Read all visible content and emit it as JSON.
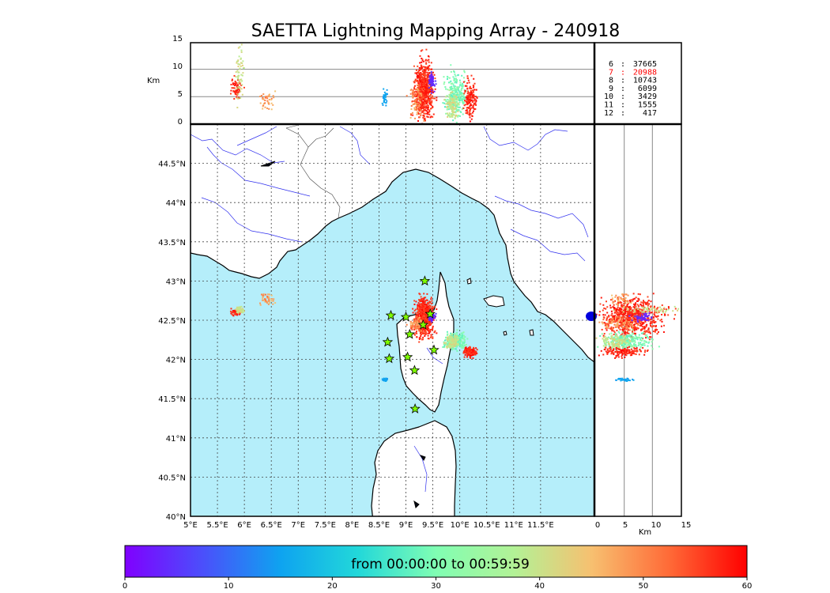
{
  "title": "SAETTA Lightning Mapping Array - 240918",
  "altitude_axis": {
    "label": "Km",
    "ticks": [
      "0",
      "5",
      "10",
      "15"
    ],
    "range_km": [
      0,
      15
    ]
  },
  "map": {
    "lon_range": [
      5.0,
      12.5
    ],
    "lat_range": [
      40.0,
      45.0
    ],
    "lon_ticks": [
      "5°E",
      "5.5°E",
      "6°E",
      "6.5°E",
      "7°E",
      "7.5°E",
      "8°E",
      "8.5°E",
      "9°E",
      "9.5°E",
      "10°E",
      "10.5°E",
      "11°E",
      "11.5°E"
    ],
    "lat_ticks": [
      "40°N",
      "40.5°N",
      "41°N",
      "41.5°N",
      "42°N",
      "42.5°N",
      "43°N",
      "43.5°N",
      "44°N",
      "44.5°N"
    ],
    "sea_color": "#b5eefa",
    "grid": "dotted"
  },
  "right_axis": {
    "label": "Km",
    "ticks": [
      "0",
      "5",
      "10",
      "15"
    ]
  },
  "counts": [
    {
      "hour": "6",
      "sep": ":",
      "count": "37665",
      "color": "#000000"
    },
    {
      "hour": "7",
      "sep": ":",
      "count": "20988",
      "color": "#ff0000"
    },
    {
      "hour": "8",
      "sep": ":",
      "count": "10743",
      "color": "#000000"
    },
    {
      "hour": "9",
      "sep": ":",
      "count": "6099",
      "color": "#000000"
    },
    {
      "hour": "10",
      "sep": ":",
      "count": "3429",
      "color": "#000000"
    },
    {
      "hour": "11",
      "sep": ":",
      "count": "1555",
      "color": "#000000"
    },
    {
      "hour": "12",
      "sep": ":",
      "count": "417",
      "color": "#000000"
    }
  ],
  "colorbar": {
    "label": "from 00:00:00 to 00:59:59",
    "ticks": [
      "0",
      "10",
      "20",
      "30",
      "40",
      "50",
      "60"
    ],
    "range_min": [
      0,
      60
    ],
    "colormap": "rainbow"
  },
  "stations": [
    {
      "lon": 9.35,
      "lat": 43.0
    },
    {
      "lon": 8.72,
      "lat": 42.56
    },
    {
      "lon": 9.0,
      "lat": 42.54
    },
    {
      "lon": 9.45,
      "lat": 42.58
    },
    {
      "lon": 9.32,
      "lat": 42.44
    },
    {
      "lon": 9.07,
      "lat": 42.32
    },
    {
      "lon": 8.66,
      "lat": 42.22
    },
    {
      "lon": 9.52,
      "lat": 42.12
    },
    {
      "lon": 9.03,
      "lat": 42.03
    },
    {
      "lon": 8.69,
      "lat": 42.01
    },
    {
      "lon": 9.16,
      "lat": 41.86
    },
    {
      "lon": 9.17,
      "lat": 41.37
    }
  ],
  "sources": [
    {
      "lon": 9.32,
      "lat": 42.55,
      "lon_sd": 0.08,
      "lat_sd": 0.12,
      "alt_km": 6.5,
      "alt_sd": 2.5,
      "tmin": 54,
      "tmax": 60,
      "n": 700
    },
    {
      "lon": 9.18,
      "lat": 42.47,
      "lon_sd": 0.07,
      "lat_sd": 0.04,
      "alt_km": 4.5,
      "alt_sd": 1.5,
      "tmin": 44,
      "tmax": 56,
      "n": 90
    },
    {
      "lon": 9.47,
      "lat": 42.55,
      "lon_sd": 0.03,
      "lat_sd": 0.03,
      "alt_km": 8.0,
      "alt_sd": 1.0,
      "tmin": 2,
      "tmax": 6,
      "n": 60
    },
    {
      "lon": 9.9,
      "lat": 42.25,
      "lon_sd": 0.09,
      "lat_sd": 0.05,
      "alt_km": 5.5,
      "alt_sd": 2.0,
      "tmin": 26,
      "tmax": 33,
      "n": 260
    },
    {
      "lon": 9.85,
      "lat": 42.24,
      "lon_sd": 0.06,
      "lat_sd": 0.04,
      "alt_km": 3.5,
      "alt_sd": 1.2,
      "tmin": 37,
      "tmax": 43,
      "n": 110
    },
    {
      "lon": 10.18,
      "lat": 42.11,
      "lon_sd": 0.06,
      "lat_sd": 0.03,
      "alt_km": 5.0,
      "alt_sd": 1.8,
      "tmin": 55,
      "tmax": 60,
      "n": 150
    },
    {
      "lon": 5.83,
      "lat": 42.61,
      "lon_sd": 0.05,
      "lat_sd": 0.02,
      "alt_km": 6.5,
      "alt_sd": 1.0,
      "tmin": 55,
      "tmax": 60,
      "n": 60
    },
    {
      "lon": 5.9,
      "lat": 42.64,
      "lon_sd": 0.04,
      "lat_sd": 0.02,
      "alt_km": 10.0,
      "alt_sd": 2.5,
      "tmin": 38,
      "tmax": 43,
      "n": 60
    },
    {
      "lon": 6.4,
      "lat": 42.78,
      "lon_sd": 0.07,
      "lat_sd": 0.04,
      "alt_km": 4.5,
      "alt_sd": 0.8,
      "tmin": 44,
      "tmax": 52,
      "n": 40
    },
    {
      "lon": 8.6,
      "lat": 41.75,
      "lon_sd": 0.03,
      "lat_sd": 0.01,
      "alt_km": 5.0,
      "alt_sd": 0.7,
      "tmin": 14,
      "tmax": 16,
      "n": 30
    }
  ]
}
